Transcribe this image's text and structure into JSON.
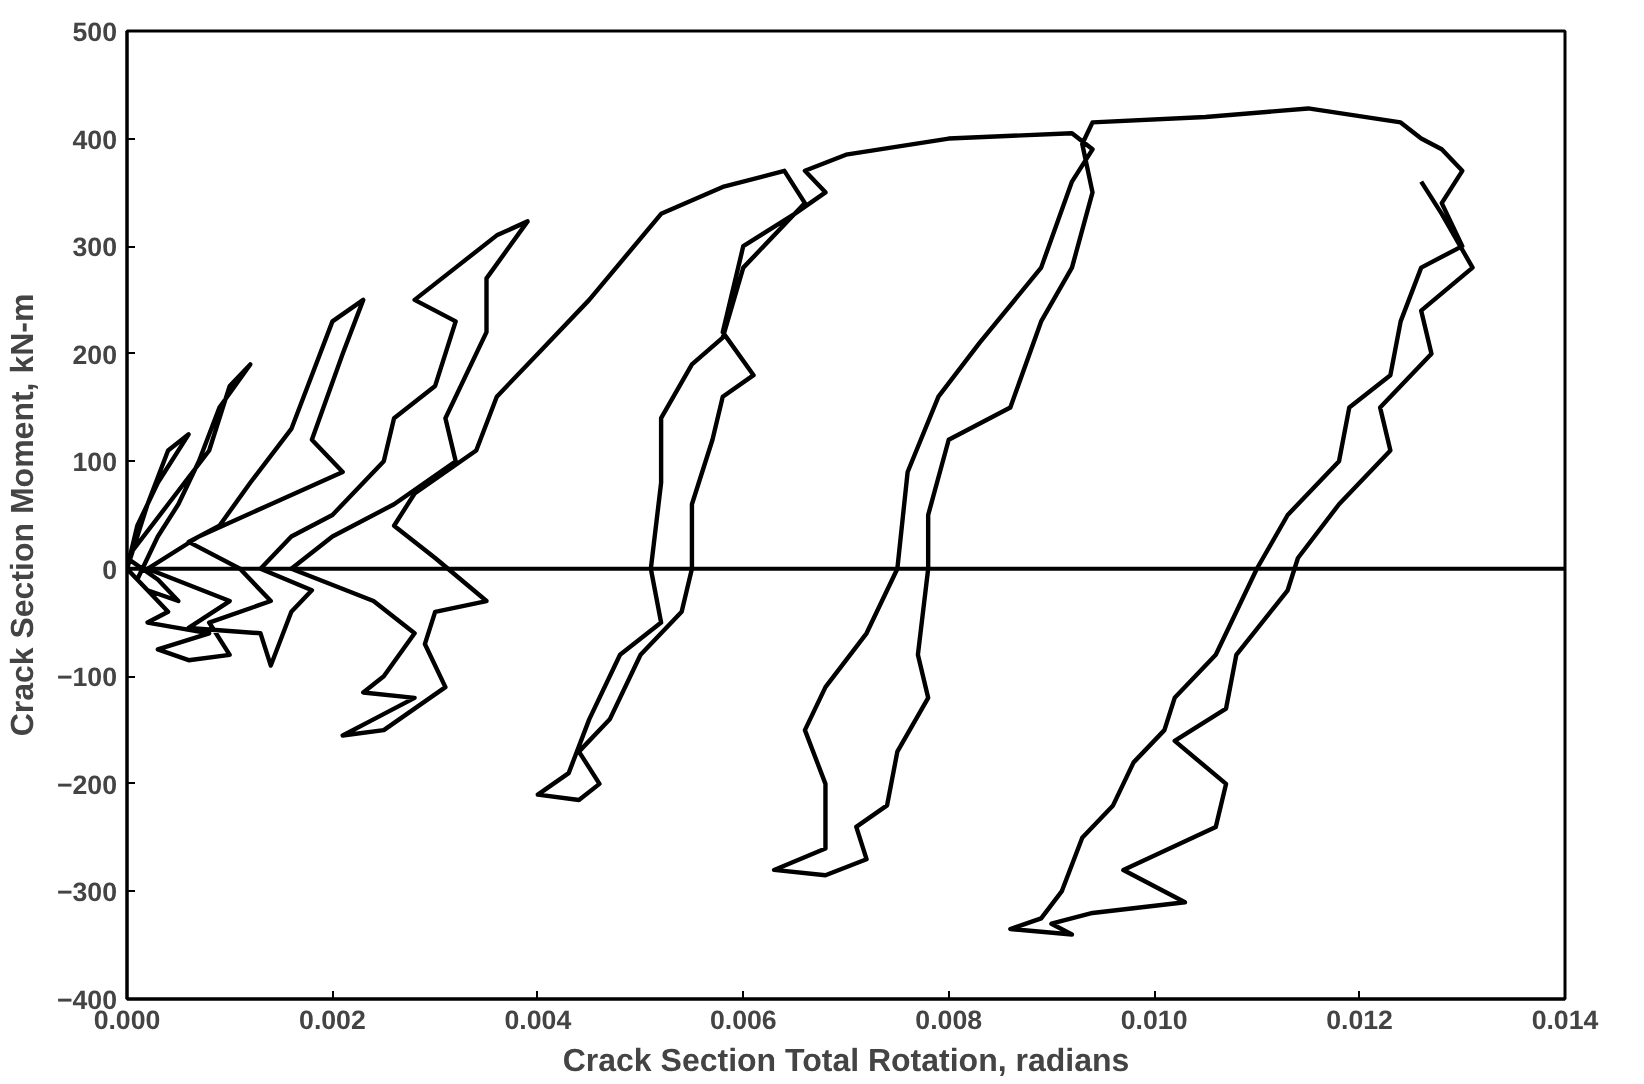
{
  "chart_data": {
    "type": "line",
    "xlabel": "Crack Section Total Rotation, radians",
    "ylabel": "Crack Section Moment, kN-m",
    "xlim": [
      0,
      0.014
    ],
    "ylim": [
      -400,
      500
    ],
    "xticks": [
      {
        "value": 0,
        "label": "0.000"
      },
      {
        "value": 0.002,
        "label": "0.002"
      },
      {
        "value": 0.004,
        "label": "0.004"
      },
      {
        "value": 0.006,
        "label": "0.006"
      },
      {
        "value": 0.008,
        "label": "0.008"
      },
      {
        "value": 0.01,
        "label": "0.010"
      },
      {
        "value": 0.012,
        "label": "0.012"
      },
      {
        "value": 0.014,
        "label": "0.014"
      }
    ],
    "yticks": [
      -400,
      -300,
      -200,
      -100,
      0,
      100,
      200,
      300,
      400,
      500
    ],
    "grid": false,
    "marker": "none",
    "line_style": "solid",
    "ref_lines": [
      {
        "axis": "y",
        "value": 0,
        "color": "#000000"
      }
    ],
    "series": [
      {
        "color": "#000000",
        "x": [
          0,
          0.0002,
          0.0004,
          0.0006,
          0.0003,
          0.0001,
          0,
          0.0002,
          0.0005,
          0.0003,
          0,
          0.0004,
          0.0008,
          0.001,
          0.0012,
          0.0009,
          0.0007,
          0.0005,
          0.0003,
          0.0001,
          0.0004,
          0.0002,
          0.0008,
          0.0003,
          0.0006,
          0.001,
          0.0008,
          0.0014,
          0.0011,
          0.0006,
          0.0009,
          0.0012,
          0.0016,
          0.0018,
          0.002,
          0.0023,
          0.0021,
          0.0018,
          0.0021,
          0.0014,
          0.0007,
          0.0002,
          0.001,
          0.0006,
          0.0013,
          0.0014,
          0.0016,
          0.0018,
          0.0013,
          0.0016,
          0.002,
          0.0025,
          0.0026,
          0.003,
          0.0032,
          0.0028,
          0.0032,
          0.0036,
          0.0039,
          0.0035,
          0.0035,
          0.0031,
          0.0032,
          0.0026,
          0.002,
          0.0016,
          0.0024,
          0.0028,
          0.0025,
          0.0023,
          0.0028,
          0.0024,
          0.0021,
          0.0025,
          0.0028,
          0.0031,
          0.0029,
          0.003,
          0.0035,
          0.003,
          0.0026,
          0.0028,
          0.0034,
          0.0036,
          0.004,
          0.0045,
          0.0052,
          0.0058,
          0.0064,
          0.0066,
          0.006,
          0.0058,
          0.0055,
          0.0052,
          0.0052,
          0.0051,
          0.0052,
          0.0048,
          0.0045,
          0.0043,
          0.004,
          0.0044,
          0.0046,
          0.0044,
          0.0047,
          0.005,
          0.0054,
          0.0055,
          0.0055,
          0.0057,
          0.0058,
          0.0061,
          0.0058,
          0.006,
          0.0065,
          0.0068,
          0.0066,
          0.007,
          0.008,
          0.0092,
          0.0094,
          0.0092,
          0.0089,
          0.0083,
          0.0079,
          0.0076,
          0.0075,
          0.0072,
          0.0068,
          0.0066,
          0.0068,
          0.0068,
          0.0063,
          0.0068,
          0.0072,
          0.0071,
          0.0074,
          0.0075,
          0.0078,
          0.0077,
          0.0078,
          0.0078,
          0.008,
          0.0086,
          0.0089,
          0.0092,
          0.0094,
          0.0093,
          0.0094,
          0.0105,
          0.0115,
          0.0124,
          0.0126,
          0.0128,
          0.013,
          0.0128,
          0.013,
          0.0126,
          0.0124,
          0.0123,
          0.0119,
          0.0118,
          0.0113,
          0.011,
          0.0108,
          0.0106,
          0.0102,
          0.0101,
          0.0098,
          0.0096,
          0.0093,
          0.0091,
          0.0089,
          0.0086,
          0.0092,
          0.009,
          0.0094,
          0.0103,
          0.0097,
          0.0106,
          0.0107,
          0.0102,
          0.0107,
          0.0108,
          0.0113,
          0.0114,
          0.0118,
          0.0123,
          0.0122,
          0.0127,
          0.0126,
          0.0131,
          0.0128,
          0.0126
        ],
        "values": [
          0,
          60,
          110,
          125,
          80,
          40,
          0,
          -20,
          -30,
          -10,
          10,
          60,
          110,
          170,
          190,
          150,
          100,
          60,
          30,
          -10,
          -40,
          -50,
          -60,
          -75,
          -85,
          -80,
          -50,
          -30,
          0,
          25,
          40,
          80,
          130,
          180,
          230,
          250,
          200,
          120,
          90,
          60,
          30,
          0,
          -30,
          -55,
          -60,
          -90,
          -40,
          -20,
          0,
          30,
          50,
          100,
          140,
          170,
          230,
          250,
          280,
          310,
          323,
          270,
          220,
          140,
          100,
          60,
          30,
          0,
          -30,
          -60,
          -100,
          -115,
          -120,
          -140,
          -155,
          -150,
          -130,
          -110,
          -70,
          -40,
          -30,
          10,
          40,
          70,
          110,
          160,
          200,
          250,
          330,
          355,
          370,
          340,
          280,
          215,
          190,
          140,
          80,
          0,
          -50,
          -80,
          -140,
          -190,
          -210,
          -215,
          -200,
          -170,
          -140,
          -80,
          -40,
          0,
          60,
          120,
          160,
          180,
          220,
          300,
          330,
          350,
          370,
          385,
          400,
          405,
          390,
          360,
          280,
          210,
          160,
          90,
          0,
          -60,
          -110,
          -150,
          -200,
          -260,
          -280,
          -285,
          -270,
          -240,
          -220,
          -170,
          -120,
          -80,
          0,
          50,
          120,
          150,
          230,
          280,
          350,
          395,
          415,
          420,
          428,
          415,
          400,
          390,
          370,
          340,
          300,
          280,
          230,
          180,
          150,
          100,
          50,
          0,
          -40,
          -80,
          -120,
          -150,
          -180,
          -220,
          -250,
          -300,
          -325,
          -335,
          -340,
          -330,
          -320,
          -310,
          -280,
          -240,
          -200,
          -160,
          -130,
          -80,
          -20,
          10,
          60,
          110,
          150,
          200,
          240,
          280,
          330,
          360
        ]
      }
    ]
  }
}
